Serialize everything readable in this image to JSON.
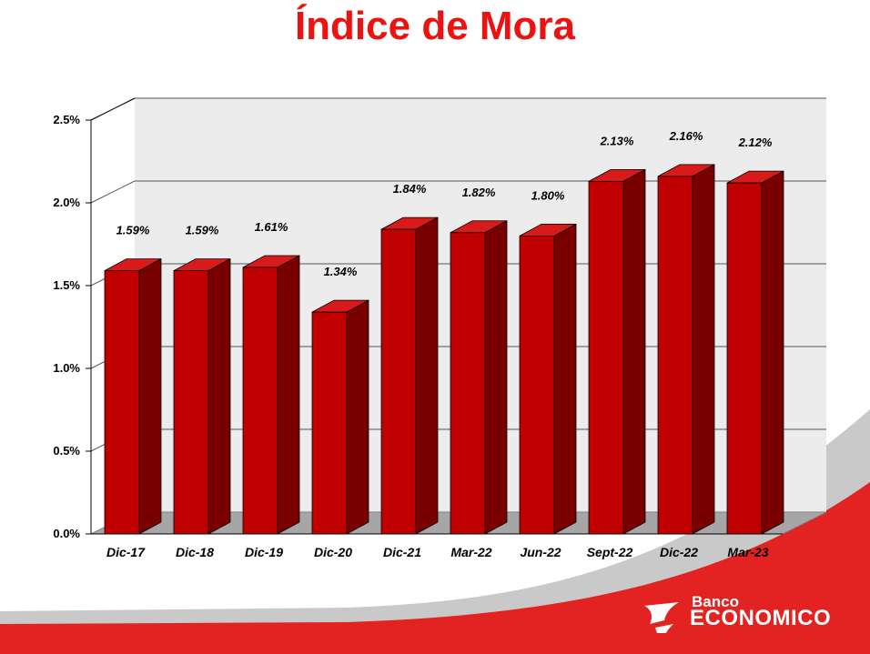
{
  "title": "Índice de Mora",
  "colors": {
    "title": "#ee1111",
    "bar_front": "#c00000",
    "bar_side": "#7a0000",
    "bar_top": "#d81a1a",
    "brand_red": "#e32222"
  },
  "logo": {
    "line1": "Banco",
    "line2": "ECONOMICO"
  },
  "chart_data": {
    "type": "bar",
    "categories": [
      "Dic-17",
      "Dic-18",
      "Dic-19",
      "Dic-20",
      "Dic-21",
      "Mar-22",
      "Jun-22",
      "Sept-22",
      "Dic-22",
      "Mar-23"
    ],
    "values": [
      1.59,
      1.59,
      1.61,
      1.34,
      1.84,
      1.82,
      1.8,
      2.13,
      2.16,
      2.12
    ],
    "data_labels": [
      "1.59%",
      "1.59%",
      "1.61%",
      "1.34%",
      "1.84%",
      "1.82%",
      "1.80%",
      "2.13%",
      "2.16%",
      "2.12%"
    ],
    "ylim": [
      0,
      2.5
    ],
    "y_ticks": [
      "0.0%",
      "0.5%",
      "1.0%",
      "1.5%",
      "2.0%",
      "2.5%"
    ],
    "y_tick_values": [
      0,
      0.5,
      1.0,
      1.5,
      2.0,
      2.5
    ],
    "grid": true,
    "style": "3d"
  }
}
